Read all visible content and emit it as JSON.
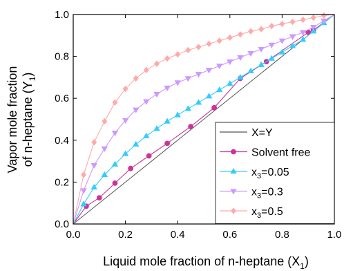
{
  "chart_data": {
    "type": "line",
    "xlabel": "Liquid mole fraction of n-heptane (X",
    "xlabel_sub": "1",
    "xlabel_end": ")",
    "ylabel_line1": "Vapor mole fraction",
    "ylabel_line2": "of n-heptane (Y",
    "ylabel_sub": "1",
    "ylabel_end": ")",
    "xlim": [
      0.0,
      1.0
    ],
    "ylim": [
      0.0,
      1.0
    ],
    "xticks": [
      0.0,
      0.2,
      0.4,
      0.6,
      0.8,
      1.0
    ],
    "yticks": [
      0.0,
      0.2,
      0.4,
      0.6,
      0.8,
      1.0
    ],
    "tick_labels": [
      "0.0",
      "0.2",
      "0.4",
      "0.6",
      "0.8",
      "1.0"
    ],
    "grid": false,
    "legend_position": "bottom-right",
    "series": [
      {
        "name": "X=Y",
        "color": "#555555",
        "marker": "none",
        "x": [
          0.0,
          1.0
        ],
        "y": [
          0.0,
          1.0
        ]
      },
      {
        "name": "Solvent free",
        "color": "#cc3399",
        "marker": "circle",
        "x": [
          0.0,
          0.05,
          0.1,
          0.16,
          0.22,
          0.29,
          0.36,
          0.45,
          0.54,
          0.64,
          0.74,
          0.9,
          0.92,
          1.0
        ],
        "y": [
          0.0,
          0.085,
          0.125,
          0.195,
          0.265,
          0.325,
          0.385,
          0.465,
          0.555,
          0.695,
          0.775,
          0.915,
          0.925,
          1.0
        ]
      },
      {
        "name": "x3=0.05",
        "name_main": "x",
        "name_sub": "3",
        "name_rest": "=0.05",
        "color": "#33ccff",
        "marker": "triangle-up",
        "x": [
          0.0,
          0.04,
          0.08,
          0.12,
          0.16,
          0.2,
          0.24,
          0.28,
          0.32,
          0.36,
          0.4,
          0.44,
          0.48,
          0.52,
          0.56,
          0.6,
          0.64,
          0.68,
          0.72,
          0.76,
          0.8,
          0.84,
          0.88,
          0.92,
          0.96,
          1.0
        ],
        "y": [
          0.0,
          0.095,
          0.175,
          0.235,
          0.285,
          0.335,
          0.38,
          0.42,
          0.455,
          0.49,
          0.52,
          0.55,
          0.58,
          0.61,
          0.64,
          0.67,
          0.7,
          0.73,
          0.76,
          0.79,
          0.82,
          0.85,
          0.88,
          0.92,
          0.96,
          1.0
        ]
      },
      {
        "name": "x3=0.3",
        "name_main": "x",
        "name_sub": "3",
        "name_rest": "=0.3",
        "color": "#cc99ff",
        "marker": "triangle-down",
        "x": [
          0.0,
          0.04,
          0.08,
          0.12,
          0.16,
          0.2,
          0.24,
          0.28,
          0.32,
          0.36,
          0.4,
          0.44,
          0.48,
          0.52,
          0.56,
          0.6,
          0.64,
          0.68,
          0.72,
          0.76,
          0.8,
          0.84,
          0.88,
          0.92,
          0.96,
          1.0
        ],
        "y": [
          0.0,
          0.16,
          0.28,
          0.36,
          0.435,
          0.495,
          0.545,
          0.585,
          0.62,
          0.65,
          0.675,
          0.695,
          0.715,
          0.735,
          0.755,
          0.775,
          0.795,
          0.815,
          0.835,
          0.855,
          0.875,
          0.895,
          0.915,
          0.94,
          0.97,
          1.0
        ]
      },
      {
        "name": "x3=0.5",
        "name_main": "x",
        "name_sub": "3",
        "name_rest": "=0.5",
        "color": "#ffaaaa",
        "marker": "diamond",
        "x": [
          0.0,
          0.04,
          0.08,
          0.12,
          0.16,
          0.2,
          0.24,
          0.28,
          0.32,
          0.36,
          0.4,
          0.44,
          0.48,
          0.52,
          0.56,
          0.6,
          0.64,
          0.68,
          0.72,
          0.76,
          0.8,
          0.84,
          0.88,
          0.92,
          0.96,
          1.0
        ],
        "y": [
          0.0,
          0.235,
          0.39,
          0.49,
          0.58,
          0.645,
          0.695,
          0.735,
          0.765,
          0.79,
          0.81,
          0.83,
          0.845,
          0.86,
          0.875,
          0.89,
          0.905,
          0.92,
          0.93,
          0.945,
          0.955,
          0.965,
          0.975,
          0.985,
          0.995,
          1.0
        ]
      }
    ]
  }
}
